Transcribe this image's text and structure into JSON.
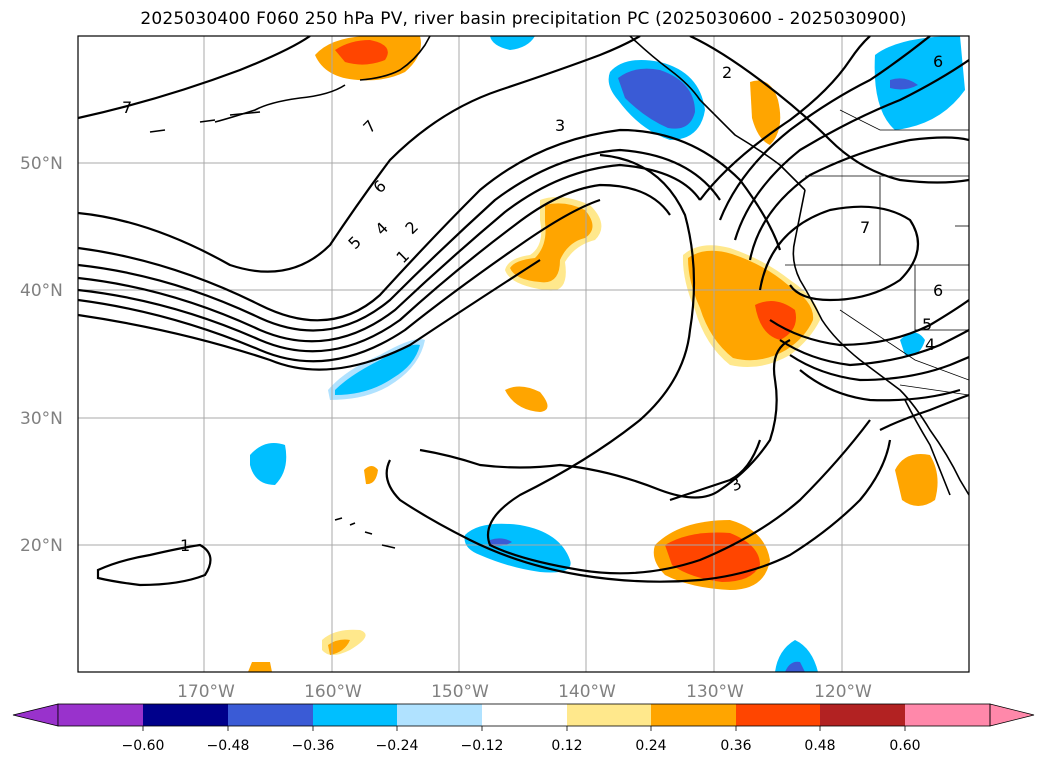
{
  "title": "2025030400 F060 250 hPa PV, river basin precipitation PC (2025030600 - 2025030900)",
  "map": {
    "lat_labels": [
      "50°N",
      "40°N",
      "30°N",
      "20°N"
    ],
    "lon_labels": [
      "170°W",
      "160°W",
      "150°W",
      "140°W",
      "130°W",
      "120°W"
    ],
    "pv_contour_labels": [
      "7",
      "7",
      "6",
      "5",
      "4",
      "2",
      "1",
      "3",
      "2",
      "7",
      "6",
      "5",
      "4",
      "3",
      "1",
      "6"
    ]
  },
  "colorbar": {
    "tick_labels": [
      "−0.60",
      "−0.48",
      "−0.36",
      "−0.24",
      "−0.12",
      "0.12",
      "0.24",
      "0.36",
      "0.48",
      "0.60"
    ],
    "colors": [
      "#9932cc",
      "#00008b",
      "#3a5bd6",
      "#00bfff",
      "#b0e2ff",
      "#ffffff",
      "#ffe88c",
      "#ffa500",
      "#ff4500",
      "#b22222",
      "#ff88aa"
    ]
  }
}
